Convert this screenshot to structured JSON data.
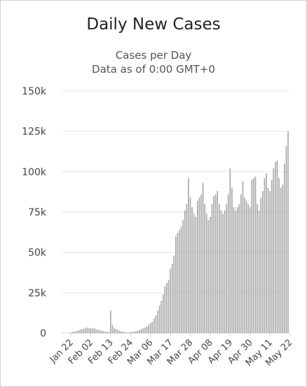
{
  "chart_data": {
    "type": "bar",
    "title": "Daily New Cases",
    "subtitle_lines": [
      "Cases per Day",
      "Data as of 0:00 GMT+0"
    ],
    "xlabel": "",
    "ylabel": "",
    "ylim": [
      0,
      150000
    ],
    "yticks": [
      "0",
      "25k",
      "50k",
      "75k",
      "100k",
      "125k",
      "150k"
    ],
    "ytick_values": [
      0,
      25000,
      50000,
      75000,
      100000,
      125000,
      150000
    ],
    "xtick_labels": [
      "Jan 22",
      "Feb 02",
      "Feb 13",
      "Feb 24",
      "Mar 06",
      "Mar 17",
      "Mar 28",
      "Apr 08",
      "Apr 19",
      "Apr 30",
      "May 11",
      "May 22"
    ],
    "start_date": "Jan 22",
    "grid": true,
    "bar_color": "#a6a6a6",
    "values": [
      500,
      800,
      1000,
      1200,
      1500,
      2000,
      2500,
      2700,
      3000,
      3500,
      3000,
      3200,
      2800,
      3000,
      2500,
      2000,
      1800,
      1500,
      1200,
      1000,
      900,
      800,
      14000,
      5000,
      3000,
      2500,
      2000,
      1500,
      1000,
      800,
      600,
      500,
      500,
      700,
      800,
      1000,
      1200,
      1500,
      2000,
      2500,
      3000,
      3500,
      4000,
      5000,
      6000,
      7000,
      9000,
      11000,
      14000,
      17000,
      20000,
      24000,
      29000,
      31000,
      33000,
      40000,
      43000,
      48000,
      60000,
      62000,
      64000,
      66000,
      70000,
      76000,
      80000,
      96000,
      84000,
      78000,
      74000,
      72000,
      82000,
      84000,
      86000,
      93000,
      80000,
      74000,
      70000,
      72000,
      80000,
      85000,
      86000,
      88000,
      80000,
      76000,
      74000,
      76000,
      80000,
      86000,
      102000,
      90000,
      78000,
      76000,
      78000,
      80000,
      86000,
      94000,
      84000,
      82000,
      80000,
      78000,
      95000,
      96000,
      97000,
      80000,
      76000,
      84000,
      88000,
      96000,
      99000,
      90000,
      88000,
      95000,
      102000,
      106000,
      107000,
      96000,
      90000,
      92000,
      105000,
      116000,
      125000
    ]
  }
}
